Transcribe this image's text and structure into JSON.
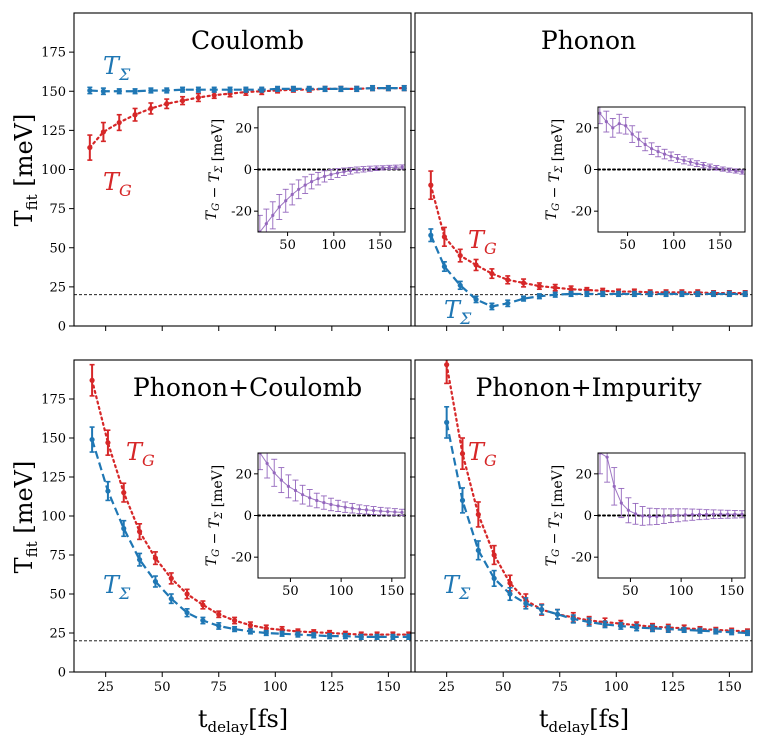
{
  "colors": {
    "T_G": "#d62728",
    "T_Sigma": "#1f77b4",
    "diff": "#9467bd"
  },
  "figure": {
    "ylabel": {
      "main": "T",
      "sub": "fit",
      "unit": " [meV]"
    },
    "xlabel": {
      "main": "t",
      "sub": "delay",
      "unit": "[fs]"
    },
    "reference_line_meV": 20
  },
  "chart_data": [
    {
      "type": "scatter",
      "title": "Coulomb",
      "xlim": [
        11,
        160
      ],
      "ylim": [
        0,
        200
      ],
      "xticks": [
        25,
        50,
        75,
        100,
        125,
        150
      ],
      "yticks": [
        0,
        25,
        50,
        75,
        100,
        125,
        150,
        175
      ],
      "show_xticklabels": false,
      "show_yticklabels": true,
      "labels": {
        "T_G": "T_G",
        "T_Sigma": "T_Σ"
      },
      "series": [
        {
          "key": "T_G",
          "name": "T_G",
          "line": "dotted",
          "x": [
            18,
            24,
            31,
            38,
            45,
            52,
            59,
            66,
            73,
            80,
            87,
            94,
            101,
            108,
            115,
            122,
            129,
            136,
            143,
            150,
            157
          ],
          "y": [
            114,
            124,
            130,
            135,
            139,
            142,
            144,
            146,
            147.5,
            148.5,
            149.5,
            150,
            150.5,
            151,
            151,
            151.5,
            151.5,
            151.5,
            152,
            152,
            152
          ],
          "err": [
            8,
            6,
            5,
            4,
            3.5,
            3,
            2.5,
            2.5,
            2,
            2,
            2,
            2,
            1.5,
            1.5,
            1.5,
            1.5,
            1.5,
            1.5,
            1.5,
            1.5,
            1.5
          ]
        },
        {
          "key": "T_Sigma",
          "name": "T_Σ",
          "line": "dashed",
          "x": [
            18,
            24,
            31,
            38,
            45,
            52,
            59,
            66,
            73,
            80,
            87,
            94,
            101,
            108,
            115,
            122,
            129,
            136,
            143,
            150,
            157
          ],
          "y": [
            150.5,
            150,
            150,
            150,
            150.5,
            150.5,
            151,
            151,
            151,
            151,
            151,
            151,
            151.5,
            151.5,
            151.5,
            151.5,
            151.5,
            151.5,
            152,
            152,
            152
          ],
          "err": [
            2,
            2,
            1.5,
            1.5,
            1.5,
            1.5,
            1.5,
            1.5,
            1.5,
            1.5,
            1.5,
            1.5,
            1.5,
            1.5,
            1.5,
            1.5,
            1.5,
            1.5,
            1.5,
            1.5,
            1.5
          ]
        }
      ],
      "inset": {
        "ylabel": "T_G − T_Σ [meV]",
        "xlim": [
          18,
          177
        ],
        "ylim": [
          -30,
          30
        ],
        "xticks": [
          50,
          100,
          150
        ],
        "yticks": [
          -20,
          0,
          20
        ],
        "x": [
          20,
          27,
          34,
          41,
          48,
          55,
          62,
          69,
          76,
          83,
          90,
          97,
          104,
          111,
          118,
          125,
          132,
          139,
          146,
          153,
          160,
          167,
          174
        ],
        "y": [
          -30,
          -26,
          -22,
          -18,
          -15,
          -12,
          -9.5,
          -7.5,
          -5.8,
          -4.4,
          -3.3,
          -2.4,
          -1.7,
          -1.1,
          -0.6,
          -0.2,
          0.1,
          0.4,
          0.6,
          0.8,
          1,
          1.1,
          1.2
        ],
        "err": [
          8,
          7,
          6.5,
          6,
          5.5,
          5,
          4.5,
          4,
          3.5,
          3,
          2.7,
          2.4,
          2.1,
          1.8,
          1.6,
          1.4,
          1.3,
          1.2,
          1.1,
          1,
          1,
          1,
          1
        ]
      }
    },
    {
      "type": "scatter",
      "title": "Phonon",
      "xlim": [
        11,
        160
      ],
      "ylim": [
        0,
        200
      ],
      "xticks": [
        25,
        50,
        75,
        100,
        125,
        150
      ],
      "yticks": [
        0,
        25,
        50,
        75,
        100,
        125,
        150,
        175
      ],
      "show_xticklabels": false,
      "show_yticklabels": false,
      "labels": {
        "T_G": "T_G",
        "T_Sigma": "T_Σ"
      },
      "series": [
        {
          "key": "T_G",
          "name": "T_G",
          "line": "dotted",
          "x": [
            18,
            24,
            31,
            38,
            45,
            52,
            59,
            66,
            73,
            80,
            87,
            94,
            101,
            108,
            115,
            122,
            129,
            136,
            143,
            150,
            157
          ],
          "y": [
            90,
            57,
            45,
            39,
            33.5,
            29.5,
            27.5,
            25.5,
            24.5,
            23.5,
            23,
            22.5,
            22,
            22,
            21.5,
            21.5,
            21.5,
            21.5,
            21,
            21,
            21
          ],
          "err": [
            9,
            6,
            4,
            3.5,
            3,
            2.5,
            2.5,
            2,
            2,
            2,
            1.5,
            1.5,
            1.5,
            1.5,
            1.5,
            1.5,
            1.5,
            1.5,
            1.5,
            1.5,
            1.5
          ]
        },
        {
          "key": "T_Sigma",
          "name": "T_Σ",
          "line": "dashed",
          "x": [
            18,
            24,
            31,
            38,
            45,
            52,
            59,
            66,
            73,
            80,
            87,
            94,
            101,
            108,
            115,
            122,
            129,
            136,
            143,
            150,
            157
          ],
          "y": [
            58,
            38,
            26,
            17,
            12.5,
            14.5,
            17.5,
            19,
            20,
            20.5,
            20.5,
            20.5,
            20.5,
            20.5,
            20.5,
            20.5,
            20.5,
            20.5,
            20.5,
            20.5,
            20.5
          ],
          "err": [
            4,
            3,
            2.5,
            2,
            2,
            2,
            1.5,
            1.5,
            1.5,
            1.5,
            1.5,
            1.5,
            1.5,
            1.5,
            1.5,
            1.5,
            1.5,
            1.5,
            1.5,
            1.5,
            1.5
          ]
        }
      ],
      "inset": {
        "ylabel": "T_G − T_Σ [meV]",
        "xlim": [
          18,
          177
        ],
        "ylim": [
          -30,
          30
        ],
        "xticks": [
          50,
          100,
          150
        ],
        "yticks": [
          -20,
          0,
          20
        ],
        "x": [
          20,
          27,
          34,
          41,
          48,
          55,
          62,
          69,
          76,
          83,
          90,
          97,
          104,
          111,
          118,
          125,
          132,
          139,
          146,
          153,
          160,
          167,
          174
        ],
        "y": [
          27,
          23,
          20,
          22,
          21,
          17,
          14.5,
          12,
          10,
          8.6,
          7.4,
          6.3,
          5.3,
          4.4,
          3.6,
          2.8,
          2.1,
          1.4,
          0.8,
          0.2,
          -0.3,
          -0.7,
          -1.2
        ],
        "err": [
          5,
          5,
          4.5,
          4.5,
          4,
          4,
          3.5,
          3,
          2.8,
          2.5,
          2.3,
          2.1,
          1.9,
          1.7,
          1.5,
          1.4,
          1.3,
          1.2,
          1.1,
          1,
          1,
          1,
          1
        ]
      }
    },
    {
      "type": "scatter",
      "title": "Phonon+Coulomb",
      "xlim": [
        11,
        160
      ],
      "ylim": [
        0,
        200
      ],
      "xticks": [
        25,
        50,
        75,
        100,
        125,
        150
      ],
      "yticks": [
        0,
        25,
        50,
        75,
        100,
        125,
        150,
        175
      ],
      "show_xticklabels": true,
      "show_yticklabels": true,
      "labels": {
        "T_G": "T_G",
        "T_Sigma": "T_Σ"
      },
      "series": [
        {
          "key": "T_G",
          "name": "T_G",
          "line": "dotted",
          "x": [
            19,
            26,
            33,
            40,
            47,
            54,
            61,
            68,
            75,
            82,
            89,
            96,
            103,
            110,
            117,
            124,
            131,
            138,
            145,
            152,
            159
          ],
          "y": [
            187,
            147,
            115,
            90,
            73,
            60,
            50,
            43,
            37,
            33,
            30,
            28,
            27,
            26,
            25.5,
            25,
            24.5,
            24,
            24,
            24,
            24
          ],
          "err": [
            10,
            8,
            6,
            5,
            4,
            3.5,
            3,
            2.5,
            2,
            2,
            2,
            2,
            2,
            1.5,
            1.5,
            1.5,
            1.5,
            1.5,
            1.5,
            1.5,
            1.5
          ]
        },
        {
          "key": "T_Sigma",
          "name": "T_Σ",
          "line": "dashed",
          "x": [
            19,
            26,
            33,
            40,
            47,
            54,
            61,
            68,
            75,
            82,
            89,
            96,
            103,
            110,
            117,
            124,
            131,
            138,
            145,
            152,
            159
          ],
          "y": [
            149,
            116,
            92,
            72,
            58,
            47,
            38,
            33,
            29.5,
            27.5,
            26,
            25,
            24.5,
            24,
            23.5,
            23,
            23,
            22.5,
            22.5,
            22.5,
            22.5
          ],
          "err": [
            8,
            6,
            5,
            4,
            3.5,
            3,
            2.5,
            2,
            2,
            1.5,
            1.5,
            1.5,
            1.5,
            1.5,
            1.5,
            1.5,
            1.5,
            1.5,
            1.5,
            1.5,
            1.5
          ]
        }
      ],
      "inset": {
        "ylabel": "T_G − T_Σ [meV]",
        "xlim": [
          18,
          163
        ],
        "ylim": [
          -30,
          30
        ],
        "xticks": [
          50,
          100,
          150
        ],
        "yticks": [
          -20,
          0,
          20
        ],
        "x": [
          20,
          27,
          34,
          41,
          48,
          55,
          62,
          69,
          76,
          83,
          90,
          97,
          104,
          111,
          118,
          125,
          132,
          139,
          146,
          153,
          160
        ],
        "y": [
          30,
          25,
          20.5,
          17,
          14,
          12,
          10,
          8.5,
          7.2,
          6.2,
          5.3,
          4.6,
          4,
          3.5,
          3,
          2.7,
          2.4,
          2.1,
          1.9,
          1.7,
          1.5
        ],
        "err": [
          8,
          7,
          6.5,
          6,
          5.5,
          5,
          4.5,
          4,
          3.5,
          3.2,
          3,
          2.7,
          2.5,
          2.3,
          2.1,
          2,
          1.9,
          1.8,
          1.7,
          1.6,
          1.5
        ]
      }
    },
    {
      "type": "scatter",
      "title": "Phonon+Impurity",
      "xlim": [
        11,
        160
      ],
      "ylim": [
        0,
        200
      ],
      "xticks": [
        25,
        50,
        75,
        100,
        125,
        150
      ],
      "yticks": [
        0,
        25,
        50,
        75,
        100,
        125,
        150,
        175
      ],
      "show_xticklabels": true,
      "show_yticklabels": false,
      "labels": {
        "T_G": "T_G",
        "T_Sigma": "T_Σ"
      },
      "series": [
        {
          "key": "T_G",
          "name": "T_G",
          "line": "dotted",
          "x": [
            25,
            32,
            39,
            46,
            53,
            60,
            67,
            74,
            81,
            88,
            95,
            102,
            109,
            116,
            123,
            130,
            137,
            144,
            151,
            158
          ],
          "y": [
            197,
            140,
            101,
            75,
            57,
            46,
            40,
            37,
            35,
            33,
            32,
            31,
            30,
            29,
            28.5,
            28,
            27.5,
            27,
            26.5,
            26
          ],
          "err": [
            12,
            10,
            8,
            6,
            5,
            4,
            3.5,
            3,
            3,
            2.5,
            2.5,
            2,
            2,
            2,
            2,
            2,
            1.5,
            1.5,
            1.5,
            1.5
          ]
        },
        {
          "key": "T_Sigma",
          "name": "T_Σ",
          "line": "dashed",
          "x": [
            25,
            32,
            39,
            46,
            53,
            60,
            67,
            74,
            81,
            88,
            95,
            102,
            109,
            116,
            123,
            130,
            137,
            144,
            151,
            158
          ],
          "y": [
            160,
            110,
            78,
            60,
            50,
            44,
            40,
            37,
            34,
            32,
            30.5,
            29.5,
            28.5,
            28,
            27.5,
            27,
            26.5,
            26,
            25.5,
            25
          ],
          "err": [
            10,
            8,
            6,
            5,
            4,
            3.5,
            3,
            3,
            2.5,
            2.5,
            2,
            2,
            2,
            2,
            2,
            1.5,
            1.5,
            1.5,
            1.5,
            1.5
          ]
        }
      ],
      "inset": {
        "ylabel": "T_G − T_Σ [meV]",
        "xlim": [
          18,
          163
        ],
        "ylim": [
          -30,
          30
        ],
        "xticks": [
          50,
          100,
          150
        ],
        "yticks": [
          -20,
          0,
          20
        ],
        "x": [
          20,
          27,
          34,
          41,
          48,
          55,
          62,
          69,
          76,
          83,
          90,
          97,
          104,
          111,
          118,
          125,
          132,
          139,
          146,
          153,
          160
        ],
        "y": [
          30,
          28,
          14,
          6,
          2.5,
          0.8,
          -0.2,
          -0.5,
          -0.5,
          -0.3,
          -0.1,
          0.1,
          0.3,
          0.4,
          0.5,
          0.5,
          0.6,
          0.6,
          0.6,
          0.6,
          0.6
        ],
        "err": [
          10,
          12,
          9,
          7,
          6,
          5,
          4.5,
          4,
          3.8,
          3.5,
          3.3,
          3.1,
          2.9,
          2.7,
          2.5,
          2.3,
          2.1,
          2,
          1.9,
          1.8,
          1.7
        ]
      }
    }
  ]
}
